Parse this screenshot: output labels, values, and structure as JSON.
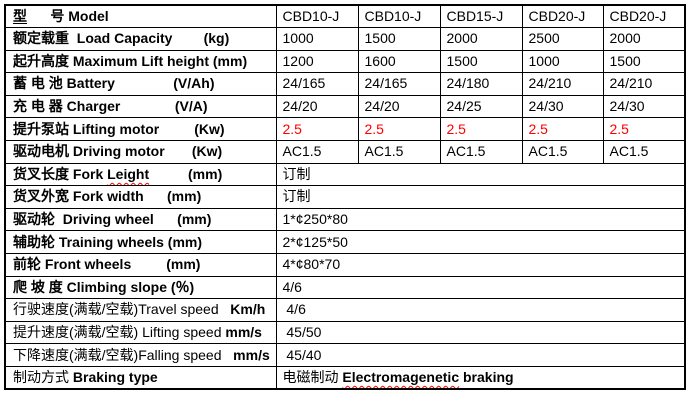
{
  "colors": {
    "accent_red": "#ff0000",
    "border": "#000000",
    "background": "#ffffff",
    "text": "#000000"
  },
  "table": {
    "columns": 6,
    "rows": [
      {
        "name": "model",
        "label": [
          {
            "t": "型",
            "b": true,
            "u": true
          },
          {
            "t": "      ",
            "b": true
          },
          {
            "t": "号 Model",
            "b": true
          }
        ],
        "values": [
          "CBD10-J",
          "CBD10-J",
          "CBD15-J",
          "CBD20-J",
          "CBD20-J"
        ]
      },
      {
        "name": "load-capacity",
        "label": [
          {
            "t": "额定载重  Load Capacity",
            "b": true
          },
          {
            "t": "        (kg)",
            "b": true
          }
        ],
        "values": [
          "1000",
          "1500",
          "2000",
          "2500",
          "2000"
        ]
      },
      {
        "name": "max-lift-height",
        "label": [
          {
            "t": "起升高度 Maximum Lift height (mm)",
            "b": true
          }
        ],
        "values": [
          "1200",
          "1600",
          "1500",
          "1000",
          "1500"
        ]
      },
      {
        "name": "battery",
        "label": [
          {
            "t": "蓄 电 池 Battery",
            "b": true
          },
          {
            "t": "               (V/Ah)",
            "b": true
          }
        ],
        "values": [
          "24/165",
          "24/165",
          "24/180",
          "24/210",
          "24/210"
        ]
      },
      {
        "name": "charger",
        "label": [
          {
            "t": "充 电 器 Charger",
            "b": true
          },
          {
            "t": "              (V/A)",
            "b": true
          }
        ],
        "values": [
          "24/20",
          "24/20",
          "24/25",
          "24/30",
          "24/30"
        ]
      },
      {
        "name": "lifting-motor",
        "label": [
          {
            "t": "提升泵站 Lifting motor",
            "b": true
          },
          {
            "t": "         (Kw)",
            "b": true
          }
        ],
        "values": [
          "2.5",
          "2.5",
          "2.5",
          "2.5",
          "2.5"
        ],
        "red_values": true
      },
      {
        "name": "driving-motor",
        "label": [
          {
            "t": "驱动电机 Driving motor",
            "b": true
          },
          {
            "t": "       (Kw)",
            "b": true
          }
        ],
        "values": [
          "AC1.5",
          "AC1.5",
          "AC1.5",
          "AC1.5",
          "AC1.5"
        ]
      },
      {
        "name": "fork-length",
        "label": [
          {
            "t": "货叉长度 Fork ",
            "b": true
          },
          {
            "t": "Leight",
            "b": true,
            "w": true
          },
          {
            "t": "          (mm)",
            "b": true
          }
        ],
        "span": true,
        "values": [
          "订制"
        ]
      },
      {
        "name": "fork-width",
        "label": [
          {
            "t": "货叉外宽 Fork width",
            "b": true
          },
          {
            "t": "      (mm)",
            "b": true
          }
        ],
        "span": true,
        "values": [
          "订制"
        ]
      },
      {
        "name": "driving-wheel",
        "label": [
          {
            "t": "驱动轮  Driving wheel",
            "b": true
          },
          {
            "t": "      (mm)",
            "b": true
          }
        ],
        "span": true,
        "values": [
          "1*¢250*80"
        ]
      },
      {
        "name": "training-wheels",
        "label": [
          {
            "t": "辅助轮 Training wheels (mm)",
            "b": true
          }
        ],
        "span": true,
        "values": [
          "2*¢125*50"
        ]
      },
      {
        "name": "front-wheels",
        "label": [
          {
            "t": "前轮 Front wheels",
            "b": true
          },
          {
            "t": "         (mm)",
            "b": true
          }
        ],
        "span": true,
        "values": [
          "4*¢80*70"
        ]
      },
      {
        "name": "climbing-slope",
        "label": [
          {
            "t": "爬 坡 度 Climbing slope (％)",
            "b": true
          }
        ],
        "span": true,
        "values": [
          "4/6"
        ]
      },
      {
        "name": "travel-speed",
        "label": [
          {
            "t": "行驶速度(满载/空载)Travel speed"
          },
          {
            "t": "   "
          },
          {
            "t": "Km/h",
            "b": true
          }
        ],
        "span": true,
        "values": [
          " 4/6"
        ]
      },
      {
        "name": "lifting-speed",
        "label": [
          {
            "t": "提升速度(满载/空载) Lifting speed "
          },
          {
            "t": "mm/s",
            "b": true
          }
        ],
        "span": true,
        "values": [
          " 45/50"
        ]
      },
      {
        "name": "falling-speed",
        "label": [
          {
            "t": "下降速度(满载/空载)Falling speed"
          },
          {
            "t": "   "
          },
          {
            "t": "mm/s",
            "b": true
          }
        ],
        "span": true,
        "values": [
          [
            {
              "t": " 45/40"
            }
          ]
        ]
      },
      {
        "name": "braking-type",
        "label": [
          {
            "t": "制动方式 "
          },
          {
            "t": "Braking type",
            "b": true
          }
        ],
        "span": true,
        "values": [
          [
            {
              "t": "电磁制动 "
            },
            {
              "t": "Electromagenetic",
              "b": true,
              "w": true
            },
            {
              "t": " braking",
              "b": true
            }
          ]
        ]
      }
    ]
  }
}
